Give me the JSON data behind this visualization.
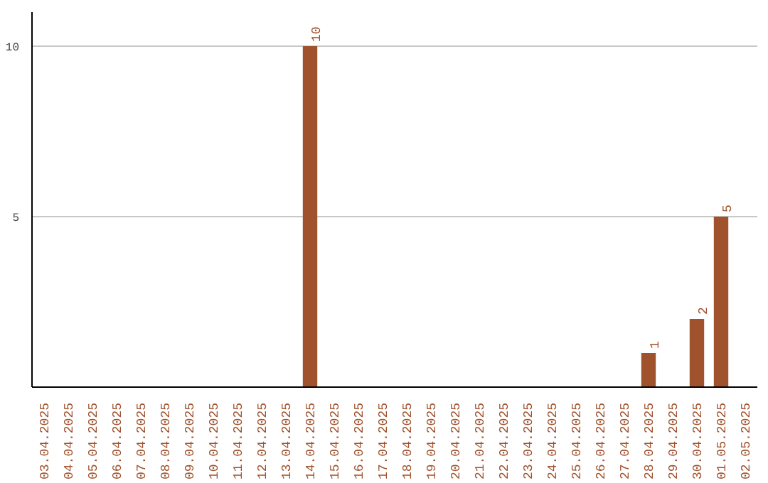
{
  "chart_data": {
    "type": "bar",
    "categories": [
      "03.04.2025",
      "04.04.2025",
      "05.04.2025",
      "06.04.2025",
      "07.04.2025",
      "08.04.2025",
      "09.04.2025",
      "10.04.2025",
      "11.04.2025",
      "12.04.2025",
      "13.04.2025",
      "14.04.2025",
      "15.04.2025",
      "16.04.2025",
      "17.04.2025",
      "18.04.2025",
      "19.04.2025",
      "20.04.2025",
      "21.04.2025",
      "22.04.2025",
      "23.04.2025",
      "24.04.2025",
      "25.04.2025",
      "26.04.2025",
      "27.04.2025",
      "28.04.2025",
      "29.04.2025",
      "30.04.2025",
      "01.05.2025",
      "02.05.2025"
    ],
    "values": [
      0,
      0,
      0,
      0,
      0,
      0,
      0,
      0,
      0,
      0,
      0,
      10,
      0,
      0,
      0,
      0,
      0,
      0,
      0,
      0,
      0,
      0,
      0,
      0,
      0,
      1,
      0,
      2,
      5,
      0
    ],
    "value_labels": [
      null,
      null,
      null,
      null,
      null,
      null,
      null,
      null,
      null,
      null,
      null,
      "10",
      null,
      null,
      null,
      null,
      null,
      null,
      null,
      null,
      null,
      null,
      null,
      null,
      null,
      "1",
      null,
      "2",
      "5",
      null
    ],
    "color": "#a0522d",
    "ylim": [
      0,
      11
    ],
    "yticks": [
      5,
      10
    ],
    "grid": "y"
  }
}
